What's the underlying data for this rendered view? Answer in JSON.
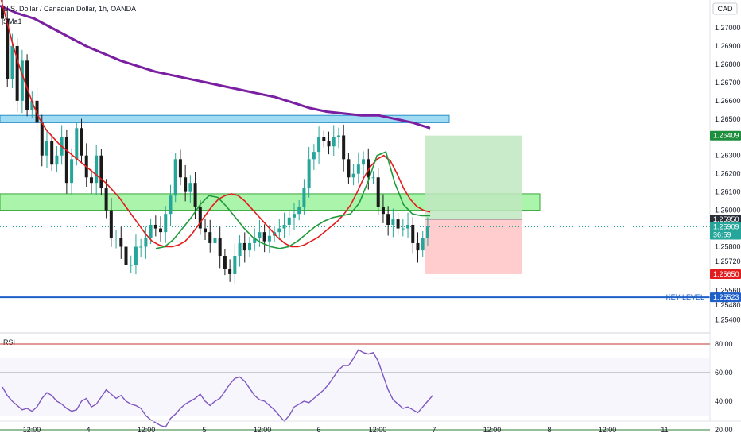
{
  "header": {
    "title": "U.S. Dollar / Canadian Dollar, 1h, OANDA",
    "indicator": "SMa1",
    "currency": "CAD"
  },
  "colors": {
    "up": "#26a69a",
    "down": "#1a1a1a",
    "ema_fast": "#e31d1d",
    "ema_green": "#1f9a3a",
    "ma_purple": "#7b1fa2",
    "zone_blue": "#7fd0f0",
    "zone_green": "#8ff08f",
    "key_level": "#1e5fc9",
    "rsi": "#7e57c2",
    "profit": "#bfe8bf",
    "loss": "#ffc4c4"
  },
  "price_axis": {
    "ticks": [
      "1.27000",
      "1.26900",
      "1.26800",
      "1.26700",
      "1.26600",
      "1.26500",
      "1.26300",
      "1.26200",
      "1.26100",
      "1.26000",
      "1.25800",
      "1.25720",
      "1.25560",
      "1.25480",
      "1.25400"
    ],
    "badges": [
      {
        "text": "1.26409",
        "price": 1.26409,
        "color": "#1e8e3e"
      },
      {
        "text": "1.25950",
        "price": 1.2595,
        "color": "#2a2e39"
      },
      {
        "text": "1.25909",
        "price": 1.25909,
        "color": "#26a69a",
        "sub": "36:59"
      },
      {
        "text": "1.25650",
        "price": 1.2565,
        "color": "#e31d1d"
      },
      {
        "text": "1.25523",
        "price": 1.25523,
        "color": "#1e5fc9"
      }
    ]
  },
  "time_axis": {
    "labels": [
      "12:00",
      "4",
      "12:00",
      "5",
      "12:00",
      "6",
      "12:00",
      "7",
      "12:00",
      "8",
      "12:00",
      "11"
    ]
  },
  "annotations": {
    "key_level_label": "KEY LEVEL"
  },
  "rsi": {
    "label": "RSI",
    "ticks": [
      "80.00",
      "60.00",
      "40.00",
      "20.00"
    ],
    "values": [
      50,
      44,
      40,
      37,
      34,
      35,
      33,
      36,
      42,
      46,
      44,
      40,
      38,
      35,
      33,
      34,
      40,
      42,
      36,
      38,
      43,
      48,
      45,
      42,
      44,
      40,
      38,
      37,
      35,
      30,
      27,
      25,
      23,
      22,
      28,
      31,
      35,
      38,
      40,
      42,
      45,
      40,
      37,
      40,
      42,
      47,
      52,
      56,
      57,
      54,
      49,
      44,
      41,
      40,
      37,
      34,
      30,
      26,
      30,
      36,
      38,
      40,
      39,
      42,
      45,
      48,
      52,
      57,
      62,
      65,
      65,
      70,
      76,
      74,
      73,
      74,
      68,
      58,
      48,
      41,
      38,
      35,
      36,
      34,
      32,
      36,
      40,
      44
    ]
  },
  "chart_data": {
    "type": "candlestick",
    "title": "U.S. Dollar / Canadian Dollar, 1h, OANDA",
    "xlabel": "",
    "ylabel": "",
    "ylim": [
      1.2538,
      1.2718
    ],
    "price_scale_ticks": [
      1.27,
      1.269,
      1.268,
      1.267,
      1.266,
      1.265,
      1.263,
      1.262,
      1.261,
      1.26,
      1.258,
      1.2572,
      1.2556,
      1.2548,
      1.254
    ],
    "close": [
      1.2705,
      1.2672,
      1.269,
      1.266,
      1.2682,
      1.2655,
      1.266,
      1.2648,
      1.263,
      1.2638,
      1.2625,
      1.263,
      1.264,
      1.2615,
      1.2628,
      1.2645,
      1.263,
      1.2618,
      1.2615,
      1.263,
      1.2612,
      1.26,
      1.2585,
      1.2585,
      1.258,
      1.257,
      1.257,
      1.258,
      1.258,
      1.2585,
      1.2592,
      1.259,
      1.2588,
      1.2598,
      1.2608,
      1.2628,
      1.2618,
      1.261,
      1.2615,
      1.2602,
      1.259,
      1.2588,
      1.2582,
      1.2585,
      1.2575,
      1.2568,
      1.2565,
      1.2575,
      1.2582,
      1.2578,
      1.2582,
      1.2585,
      1.2588,
      1.2583,
      1.2586,
      1.2588,
      1.259,
      1.2592,
      1.2596,
      1.2598,
      1.2602,
      1.2612,
      1.2628,
      1.2632,
      1.264,
      1.2638,
      1.2635,
      1.264,
      1.2641,
      1.2628,
      1.2618,
      1.262,
      1.2625,
      1.2628,
      1.2618,
      1.2618,
      1.2602,
      1.2598,
      1.2592,
      1.2595,
      1.259,
      1.259,
      1.2592,
      1.2582,
      1.2578,
      1.2585,
      1.2591
    ],
    "ema_fast": [
      1.2718,
      1.2704,
      1.269,
      1.2678,
      1.2668,
      1.2658,
      1.265,
      1.2644,
      1.264,
      1.2636,
      1.2633,
      1.263,
      1.2627,
      1.2624,
      1.2621,
      1.2618,
      1.2615,
      1.2611,
      1.2607,
      1.2602,
      1.2597,
      1.2592,
      1.2587,
      1.2583,
      1.2581,
      1.258,
      1.258,
      1.2581,
      1.2583,
      1.2587,
      1.2592,
      1.2597,
      1.2602,
      1.2606,
      1.2608,
      1.2609,
      1.2608,
      1.2605,
      1.2601,
      1.2597,
      1.2593,
      1.2589,
      1.2585,
      1.2582,
      1.258,
      1.258,
      1.2581,
      1.2583,
      1.2585,
      1.2588,
      1.2591,
      1.2594,
      1.2598,
      1.2603,
      1.261,
      1.2618,
      1.2624,
      1.2628,
      1.263,
      1.2627,
      1.262,
      1.2612,
      1.2606,
      1.2602,
      1.26,
      1.2599
    ],
    "ma_purple": [
      1.2712,
      1.2708,
      1.2705,
      1.27,
      1.2695,
      1.269,
      1.2686,
      1.2682,
      1.2679,
      1.2676,
      1.2674,
      1.2672,
      1.267,
      1.2668,
      1.2666,
      1.2664,
      1.2662,
      1.2659,
      1.2656,
      1.2654,
      1.2653,
      1.2652,
      1.2652,
      1.265,
      1.2648,
      1.2645
    ],
    "ma_green": [
      1.2579,
      1.258,
      1.2584,
      1.259,
      1.2596,
      1.2603,
      1.2608,
      1.2607,
      1.2602,
      1.2596,
      1.259,
      1.2585,
      1.2582,
      1.258,
      1.2579,
      1.258,
      1.2583,
      1.2587,
      1.2591,
      1.2594,
      1.2596,
      1.2597,
      1.2598,
      1.2604,
      1.2616,
      1.263,
      1.2632,
      1.2615,
      1.2603,
      1.2598,
      1.2597,
      1.2597
    ],
    "zones": [
      {
        "from": 1.2652,
        "to": 1.2648
      },
      {
        "from": 1.2609,
        "to": 1.26
      }
    ],
    "key_level": 1.25523,
    "position": {
      "entry": 1.2595,
      "target": 1.26409,
      "stop": 1.2565
    },
    "last_price": 1.25909
  }
}
